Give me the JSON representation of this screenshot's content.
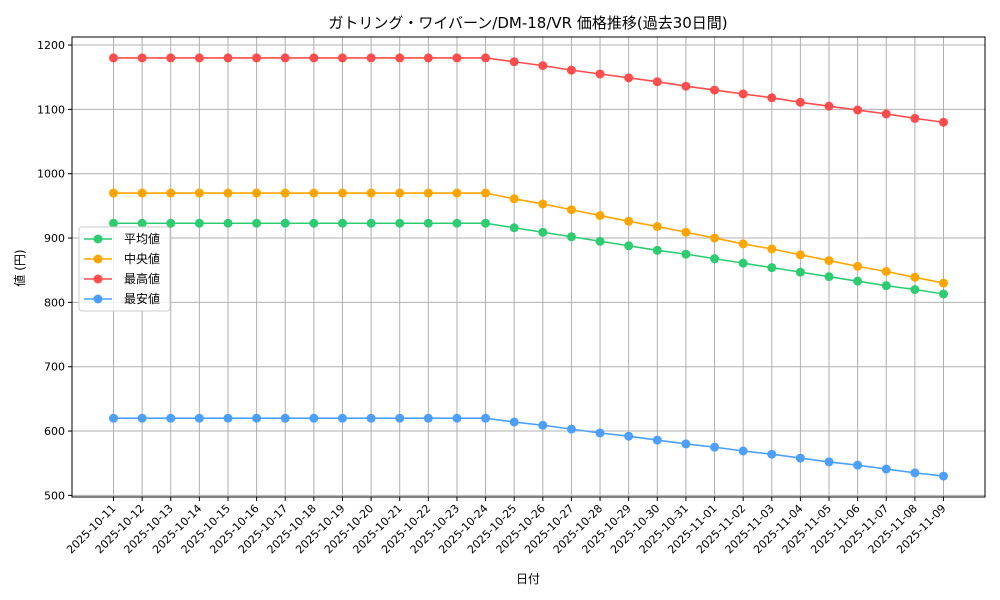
{
  "chart_data": {
    "type": "line",
    "title": "ガトリング・ワイバーン/DM-18/VR 価格推移(過去30日間)",
    "xlabel": "日付",
    "ylabel": "値 (円)",
    "ylim": [
      497.5,
      1212.5
    ],
    "yticks": [
      500,
      600,
      700,
      800,
      900,
      1000,
      1100,
      1200
    ],
    "grid": true,
    "legend_position": "center-left",
    "x": [
      "2025-10-11",
      "2025-10-12",
      "2025-10-13",
      "2025-10-14",
      "2025-10-15",
      "2025-10-16",
      "2025-10-17",
      "2025-10-18",
      "2025-10-19",
      "2025-10-20",
      "2025-10-21",
      "2025-10-22",
      "2025-10-23",
      "2025-10-24",
      "2025-10-25",
      "2025-10-26",
      "2025-10-27",
      "2025-10-28",
      "2025-10-29",
      "2025-10-30",
      "2025-10-31",
      "2025-11-01",
      "2025-11-02",
      "2025-11-03",
      "2025-11-04",
      "2025-11-05",
      "2025-11-06",
      "2025-11-07",
      "2025-11-08",
      "2025-11-09"
    ],
    "series": [
      {
        "name": "平均値",
        "color": "#2ecc71",
        "values": [
          923,
          923,
          923,
          923,
          923,
          923,
          923,
          923,
          923,
          923,
          923,
          923,
          923,
          923,
          916,
          909,
          902,
          895,
          888,
          881,
          875,
          868,
          861,
          854,
          847,
          840,
          833,
          826,
          820,
          813
        ]
      },
      {
        "name": "中央値",
        "color": "#ffa500",
        "values": [
          970,
          970,
          970,
          970,
          970,
          970,
          970,
          970,
          970,
          970,
          970,
          970,
          970,
          970,
          961,
          953,
          944,
          935,
          926,
          918,
          909,
          900,
          891,
          883,
          874,
          865,
          856,
          848,
          839,
          830
        ]
      },
      {
        "name": "最高値",
        "color": "#ff4d4d",
        "values": [
          1180,
          1180,
          1180,
          1180,
          1180,
          1180,
          1180,
          1180,
          1180,
          1180,
          1180,
          1180,
          1180,
          1180,
          1174,
          1168,
          1161,
          1155,
          1149,
          1143,
          1136,
          1130,
          1124,
          1118,
          1111,
          1105,
          1099,
          1093,
          1086,
          1080
        ]
      },
      {
        "name": "最安値",
        "color": "#4d9fff",
        "values": [
          620,
          620,
          620,
          620,
          620,
          620,
          620,
          620,
          620,
          620,
          620,
          620,
          620,
          620,
          614,
          609,
          603,
          597,
          592,
          586,
          580,
          575,
          569,
          564,
          558,
          552,
          547,
          541,
          535,
          530
        ]
      }
    ]
  }
}
